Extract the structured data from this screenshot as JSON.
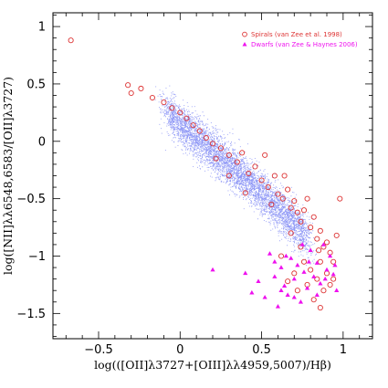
{
  "chart_data": {
    "type": "scatter",
    "xlabel": "log(([OII]λ3727+[OIII]λλ4959,5007)/Hβ)",
    "ylabel": "log([NII]λλ6548,6583/[OII]λ3727)",
    "xlim": [
      -0.78,
      1.18
    ],
    "ylim": [
      -1.72,
      1.12
    ],
    "x_ticks": [
      {
        "value": -0.5,
        "label": "−0.5"
      },
      {
        "value": 0,
        "label": "0"
      },
      {
        "value": 0.5,
        "label": "0.5"
      },
      {
        "value": 1,
        "label": "1"
      }
    ],
    "y_ticks": [
      {
        "value": 1,
        "label": "1"
      },
      {
        "value": 0.5,
        "label": "0.5"
      },
      {
        "value": 0,
        "label": "0"
      },
      {
        "value": -0.5,
        "label": "−0.5"
      },
      {
        "value": -1,
        "label": "−1"
      },
      {
        "value": -1.5,
        "label": "−1.5"
      }
    ],
    "grid": false,
    "legend_position": "top-right",
    "colors": {
      "background_cloud": "#3344ee",
      "spirals": "#dd3333",
      "dwarfs": "#ee11ee"
    },
    "series": [
      {
        "name": "Spirals (van Zee et al. 1998)",
        "marker": "open-circle",
        "color": "#dd3333",
        "points": [
          [
            -0.67,
            0.88
          ],
          [
            -0.32,
            0.49
          ],
          [
            -0.3,
            0.42
          ],
          [
            -0.24,
            0.46
          ],
          [
            -0.17,
            0.38
          ],
          [
            -0.1,
            0.34
          ],
          [
            -0.05,
            0.29
          ],
          [
            0.0,
            0.25
          ],
          [
            0.04,
            0.2
          ],
          [
            0.08,
            0.14
          ],
          [
            0.12,
            0.09
          ],
          [
            0.16,
            0.03
          ],
          [
            0.2,
            -0.02
          ],
          [
            0.25,
            -0.06
          ],
          [
            0.3,
            -0.12
          ],
          [
            0.35,
            -0.18
          ],
          [
            0.38,
            -0.1
          ],
          [
            0.42,
            -0.28
          ],
          [
            0.46,
            -0.22
          ],
          [
            0.5,
            -0.34
          ],
          [
            0.54,
            -0.4
          ],
          [
            0.58,
            -0.3
          ],
          [
            0.6,
            -0.46
          ],
          [
            0.63,
            -0.5
          ],
          [
            0.66,
            -0.42
          ],
          [
            0.68,
            -0.58
          ],
          [
            0.7,
            -0.52
          ],
          [
            0.72,
            -0.62
          ],
          [
            0.74,
            -0.7
          ],
          [
            0.76,
            -0.6
          ],
          [
            0.78,
            -0.5
          ],
          [
            0.8,
            -0.75
          ],
          [
            0.82,
            -0.66
          ],
          [
            0.84,
            -0.85
          ],
          [
            0.86,
            -0.78
          ],
          [
            0.88,
            -0.92
          ],
          [
            0.9,
            -0.88
          ],
          [
            0.92,
            -0.97
          ],
          [
            0.94,
            -1.05
          ],
          [
            0.96,
            -0.82
          ],
          [
            0.98,
            -0.5
          ],
          [
            0.8,
            -1.12
          ],
          [
            0.84,
            -1.2
          ],
          [
            0.86,
            -1.05
          ],
          [
            0.88,
            -1.3
          ],
          [
            0.9,
            -1.15
          ],
          [
            0.92,
            -1.25
          ],
          [
            0.78,
            -1.25
          ],
          [
            0.82,
            -1.38
          ],
          [
            0.72,
            -1.3
          ],
          [
            0.76,
            -1.05
          ],
          [
            0.7,
            -1.15
          ],
          [
            0.74,
            -0.92
          ],
          [
            0.66,
            -1.22
          ],
          [
            0.62,
            -1.0
          ],
          [
            0.94,
            -1.2
          ],
          [
            0.85,
            -0.95
          ],
          [
            0.68,
            -0.8
          ],
          [
            0.56,
            -0.55
          ],
          [
            0.4,
            -0.45
          ],
          [
            0.3,
            -0.3
          ],
          [
            0.22,
            -0.15
          ],
          [
            0.52,
            -0.12
          ],
          [
            0.64,
            -0.3
          ],
          [
            0.86,
            -1.45
          ]
        ]
      },
      {
        "name": "Dwarfs (van Zee & Haynes 2006)",
        "marker": "filled-triangle",
        "color": "#ee11ee",
        "points": [
          [
            0.2,
            -1.12
          ],
          [
            0.4,
            -1.15
          ],
          [
            0.44,
            -1.32
          ],
          [
            0.48,
            -1.22
          ],
          [
            0.52,
            -1.36
          ],
          [
            0.55,
            -0.98
          ],
          [
            0.58,
            -1.18
          ],
          [
            0.6,
            -1.44
          ],
          [
            0.62,
            -1.1
          ],
          [
            0.64,
            -1.26
          ],
          [
            0.66,
            -1.34
          ],
          [
            0.68,
            -1.02
          ],
          [
            0.7,
            -1.2
          ],
          [
            0.72,
            -1.08
          ],
          [
            0.74,
            -1.4
          ],
          [
            0.76,
            -1.14
          ],
          [
            0.78,
            -1.28
          ],
          [
            0.8,
            -0.95
          ],
          [
            0.82,
            -1.18
          ],
          [
            0.84,
            -1.06
          ],
          [
            0.86,
            -1.24
          ],
          [
            0.88,
            -0.9
          ],
          [
            0.9,
            -1.12
          ],
          [
            0.92,
            -1.0
          ],
          [
            0.94,
            -1.16
          ],
          [
            0.96,
            -1.3
          ],
          [
            0.75,
            -0.9
          ],
          [
            0.65,
            -1.0
          ],
          [
            0.84,
            -1.34
          ],
          [
            0.7,
            -1.36
          ],
          [
            0.62,
            -1.3
          ],
          [
            0.79,
            -1.05
          ],
          [
            0.89,
            -1.2
          ],
          [
            0.58,
            -1.05
          ],
          [
            0.95,
            -1.08
          ]
        ]
      }
    ]
  }
}
